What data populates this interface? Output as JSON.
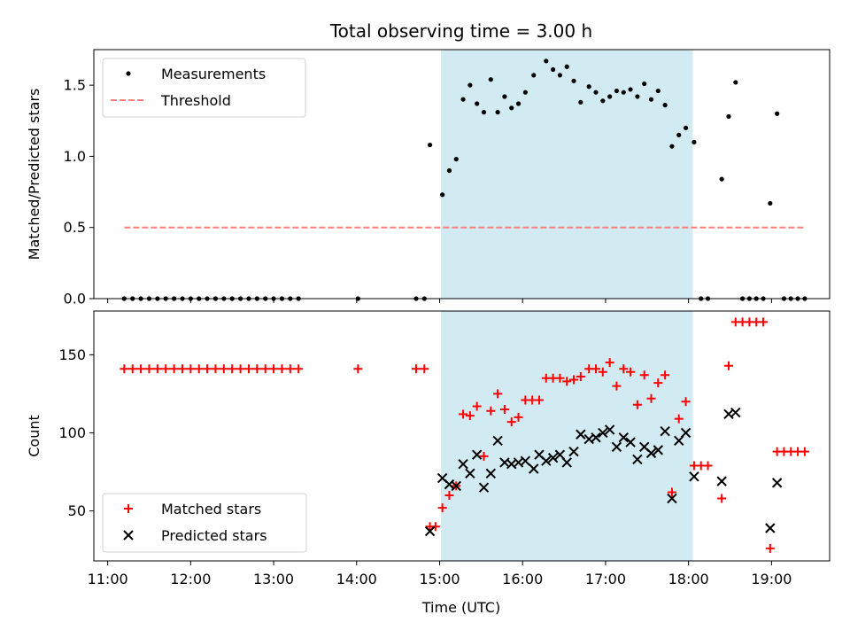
{
  "chart_data": {
    "title": "Total observing time = 3.00 h",
    "xlabel": "Time (UTC)",
    "x_ticks": [
      "11:00",
      "12:00",
      "13:00",
      "14:00",
      "15:00",
      "16:00",
      "17:00",
      "18:00",
      "19:00"
    ],
    "xlim": [
      "10:50",
      "19:42"
    ],
    "shaded_interval": {
      "start": "15:01",
      "end": "18:03",
      "color": "#add8e6"
    },
    "panels": [
      {
        "type": "scatter",
        "ylabel": "Matched/Predicted stars",
        "ylim": [
          0,
          1.75
        ],
        "y_ticks": [
          0.0,
          0.5,
          1.0,
          1.5
        ],
        "y_tick_labels": [
          "0.0",
          "0.5",
          "1.0",
          "1.5"
        ],
        "legend": {
          "position": "upper-left",
          "entries": [
            "Measurements",
            "Threshold"
          ]
        },
        "series": [
          {
            "name": "Measurements",
            "marker": "dot",
            "color": "#000000",
            "points": [
              [
                "11:12",
                0
              ],
              [
                "11:18",
                0
              ],
              [
                "11:24",
                0
              ],
              [
                "11:30",
                0
              ],
              [
                "11:36",
                0
              ],
              [
                "11:42",
                0
              ],
              [
                "11:48",
                0
              ],
              [
                "11:54",
                0
              ],
              [
                "12:00",
                0
              ],
              [
                "12:06",
                0
              ],
              [
                "12:12",
                0
              ],
              [
                "12:18",
                0
              ],
              [
                "12:24",
                0
              ],
              [
                "12:30",
                0
              ],
              [
                "12:36",
                0
              ],
              [
                "12:42",
                0
              ],
              [
                "12:48",
                0
              ],
              [
                "12:54",
                0
              ],
              [
                "13:00",
                0
              ],
              [
                "13:06",
                0
              ],
              [
                "13:12",
                0
              ],
              [
                "13:18",
                0
              ],
              [
                "14:01",
                0
              ],
              [
                "14:43",
                0
              ],
              [
                "14:49",
                0
              ],
              [
                "14:53",
                1.08
              ],
              [
                "15:02",
                0.73
              ],
              [
                "15:07",
                0.9
              ],
              [
                "15:12",
                0.98
              ],
              [
                "15:17",
                1.4
              ],
              [
                "15:22",
                1.5
              ],
              [
                "15:27",
                1.37
              ],
              [
                "15:32",
                1.31
              ],
              [
                "15:37",
                1.54
              ],
              [
                "15:42",
                1.31
              ],
              [
                "15:47",
                1.42
              ],
              [
                "15:52",
                1.34
              ],
              [
                "15:57",
                1.37
              ],
              [
                "16:02",
                1.45
              ],
              [
                "16:08",
                1.57
              ],
              [
                "16:17",
                1.67
              ],
              [
                "16:22",
                1.61
              ],
              [
                "16:27",
                1.57
              ],
              [
                "16:32",
                1.63
              ],
              [
                "16:37",
                1.53
              ],
              [
                "16:42",
                1.38
              ],
              [
                "16:48",
                1.49
              ],
              [
                "16:53",
                1.45
              ],
              [
                "16:58",
                1.39
              ],
              [
                "17:03",
                1.42
              ],
              [
                "17:08",
                1.46
              ],
              [
                "17:13",
                1.45
              ],
              [
                "17:18",
                1.47
              ],
              [
                "17:23",
                1.42
              ],
              [
                "17:28",
                1.51
              ],
              [
                "17:33",
                1.4
              ],
              [
                "17:38",
                1.46
              ],
              [
                "17:43",
                1.36
              ],
              [
                "17:48",
                1.07
              ],
              [
                "17:53",
                1.15
              ],
              [
                "17:58",
                1.2
              ],
              [
                "18:04",
                1.1
              ],
              [
                "18:09",
                0
              ],
              [
                "18:14",
                0
              ],
              [
                "18:24",
                0.84
              ],
              [
                "18:29",
                1.28
              ],
              [
                "18:34",
                1.52
              ],
              [
                "18:39",
                0
              ],
              [
                "18:44",
                0
              ],
              [
                "18:49",
                0
              ],
              [
                "18:54",
                0
              ],
              [
                "18:59",
                0.67
              ],
              [
                "19:04",
                1.3
              ],
              [
                "19:09",
                0
              ],
              [
                "19:14",
                0
              ],
              [
                "19:19",
                0
              ],
              [
                "19:24",
                0
              ]
            ]
          },
          {
            "name": "Threshold",
            "marker": "dashed-line",
            "color": "#ff7f7f",
            "points": [
              [
                "11:12",
                0.5
              ],
              [
                "19:24",
                0.5
              ]
            ]
          }
        ]
      },
      {
        "type": "scatter",
        "ylabel": "Count",
        "ylim": [
          18,
          178
        ],
        "y_ticks": [
          50,
          100,
          150
        ],
        "y_tick_labels": [
          "50",
          "100",
          "150"
        ],
        "legend": {
          "position": "lower-left",
          "entries": [
            "Matched stars",
            "Predicted stars"
          ]
        },
        "series": [
          {
            "name": "Matched stars",
            "marker": "plus",
            "color": "#ff0000",
            "points": [
              [
                "11:12",
                141
              ],
              [
                "11:18",
                141
              ],
              [
                "11:24",
                141
              ],
              [
                "11:30",
                141
              ],
              [
                "11:36",
                141
              ],
              [
                "11:42",
                141
              ],
              [
                "11:48",
                141
              ],
              [
                "11:54",
                141
              ],
              [
                "12:00",
                141
              ],
              [
                "12:06",
                141
              ],
              [
                "12:12",
                141
              ],
              [
                "12:18",
                141
              ],
              [
                "12:24",
                141
              ],
              [
                "12:30",
                141
              ],
              [
                "12:36",
                141
              ],
              [
                "12:42",
                141
              ],
              [
                "12:48",
                141
              ],
              [
                "12:54",
                141
              ],
              [
                "13:00",
                141
              ],
              [
                "13:06",
                141
              ],
              [
                "13:12",
                141
              ],
              [
                "13:18",
                141
              ],
              [
                "14:01",
                141
              ],
              [
                "14:43",
                141
              ],
              [
                "14:49",
                141
              ],
              [
                "14:53",
                40
              ],
              [
                "14:57",
                40
              ],
              [
                "15:02",
                52
              ],
              [
                "15:07",
                60
              ],
              [
                "15:12",
                66
              ],
              [
                "15:17",
                112
              ],
              [
                "15:22",
                111
              ],
              [
                "15:27",
                117
              ],
              [
                "15:32",
                85
              ],
              [
                "15:37",
                114
              ],
              [
                "15:42",
                125
              ],
              [
                "15:47",
                115
              ],
              [
                "15:52",
                107
              ],
              [
                "15:57",
                110
              ],
              [
                "16:02",
                121
              ],
              [
                "16:07",
                121
              ],
              [
                "16:12",
                121
              ],
              [
                "16:17",
                135
              ],
              [
                "16:22",
                135
              ],
              [
                "16:27",
                135
              ],
              [
                "16:32",
                133
              ],
              [
                "16:37",
                134
              ],
              [
                "16:42",
                136
              ],
              [
                "16:48",
                141
              ],
              [
                "16:53",
                141
              ],
              [
                "16:58",
                139
              ],
              [
                "17:03",
                145
              ],
              [
                "17:08",
                130
              ],
              [
                "17:13",
                141
              ],
              [
                "17:18",
                139
              ],
              [
                "17:23",
                118
              ],
              [
                "17:28",
                137
              ],
              [
                "17:33",
                122
              ],
              [
                "17:38",
                132
              ],
              [
                "17:43",
                137
              ],
              [
                "17:48",
                62
              ],
              [
                "17:53",
                109
              ],
              [
                "17:58",
                120
              ],
              [
                "18:04",
                79
              ],
              [
                "18:09",
                79
              ],
              [
                "18:14",
                79
              ],
              [
                "18:24",
                58
              ],
              [
                "18:29",
                143
              ],
              [
                "18:34",
                171
              ],
              [
                "18:39",
                171
              ],
              [
                "18:44",
                171
              ],
              [
                "18:49",
                171
              ],
              [
                "18:54",
                171
              ],
              [
                "18:59",
                26
              ],
              [
                "19:04",
                88
              ],
              [
                "19:09",
                88
              ],
              [
                "19:14",
                88
              ],
              [
                "19:19",
                88
              ],
              [
                "19:24",
                88
              ]
            ]
          },
          {
            "name": "Predicted stars",
            "marker": "x",
            "color": "#000000",
            "points": [
              [
                "14:53",
                37
              ],
              [
                "15:02",
                71
              ],
              [
                "15:07",
                67
              ],
              [
                "15:12",
                66
              ],
              [
                "15:17",
                80
              ],
              [
                "15:22",
                74
              ],
              [
                "15:27",
                86
              ],
              [
                "15:32",
                65
              ],
              [
                "15:37",
                74
              ],
              [
                "15:42",
                95
              ],
              [
                "15:47",
                81
              ],
              [
                "15:52",
                80
              ],
              [
                "15:57",
                81
              ],
              [
                "16:02",
                82
              ],
              [
                "16:08",
                77
              ],
              [
                "16:12",
                86
              ],
              [
                "16:17",
                82
              ],
              [
                "16:22",
                84
              ],
              [
                "16:27",
                86
              ],
              [
                "16:32",
                81
              ],
              [
                "16:37",
                88
              ],
              [
                "16:42",
                99
              ],
              [
                "16:48",
                96
              ],
              [
                "16:53",
                97
              ],
              [
                "16:58",
                100
              ],
              [
                "17:03",
                102
              ],
              [
                "17:08",
                91
              ],
              [
                "17:13",
                97
              ],
              [
                "17:18",
                94
              ],
              [
                "17:23",
                83
              ],
              [
                "17:28",
                91
              ],
              [
                "17:33",
                87
              ],
              [
                "17:38",
                89
              ],
              [
                "17:43",
                101
              ],
              [
                "17:48",
                58
              ],
              [
                "17:53",
                95
              ],
              [
                "17:58",
                100
              ],
              [
                "18:04",
                72
              ],
              [
                "18:24",
                69
              ],
              [
                "18:29",
                112
              ],
              [
                "18:34",
                113
              ],
              [
                "18:59",
                39
              ],
              [
                "19:04",
                68
              ]
            ]
          }
        ]
      }
    ]
  }
}
